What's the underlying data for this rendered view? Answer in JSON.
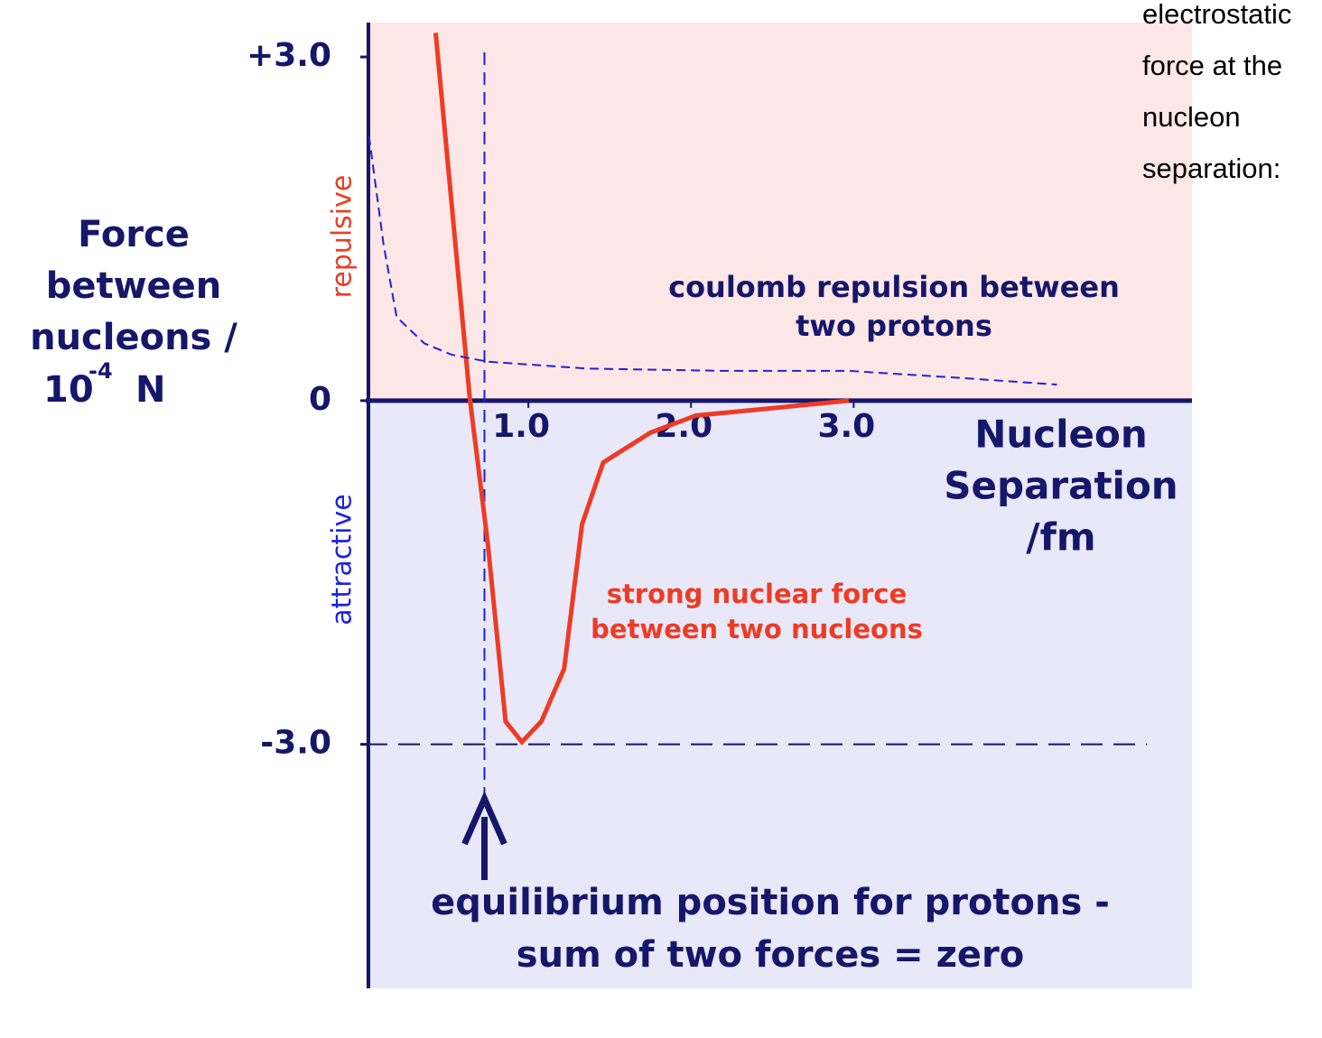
{
  "chart_data": {
    "type": "line",
    "ylabel": [
      "Force",
      "between",
      "nucleons /"
    ],
    "ylabel_unit": {
      "base": "10",
      "exp": "-4",
      "unit": "N"
    },
    "xlabel": [
      "Nucleon",
      "Separation",
      "/fm"
    ],
    "region_labels": {
      "top": "repulsive",
      "bottom": "attractive"
    },
    "region_colors": {
      "top": "#fde7e6",
      "bottom": "#e8e8f9"
    },
    "xlim": [
      0,
      5.08
    ],
    "ylim": [
      -5.13,
      3.3
    ],
    "xticks": [
      {
        "value": 1,
        "label": "1.0"
      },
      {
        "value": 2,
        "label": "2.0"
      },
      {
        "value": 3,
        "label": "3.0"
      }
    ],
    "yticks": [
      {
        "value": 3,
        "label": "+3.0"
      },
      0,
      {
        "value": -3,
        "label": "-3.0"
      }
    ],
    "series": [
      {
        "name": "strong nuclear force between two nucleons",
        "color": "#ee3b24",
        "style": "solid",
        "x": [
          0.43,
          0.64,
          0.75,
          0.86,
          0.96,
          1.08,
          1.22,
          1.33,
          1.46,
          1.75,
          2.03,
          2.47,
          2.97
        ],
        "values": [
          3.21,
          0.02,
          -1.24,
          -2.8,
          -2.98,
          -2.8,
          -2.34,
          -1.08,
          -0.54,
          -0.28,
          -0.13,
          -0.07,
          0
        ]
      },
      {
        "name": "coulomb repulsion between two protons",
        "color": "#2020e0",
        "style": "dashed",
        "x": [
          0.02,
          0.11,
          0.19,
          0.36,
          0.53,
          0.75,
          1.36,
          2.19,
          2.97,
          3.64,
          4.25
        ],
        "values": [
          2.31,
          1.36,
          0.73,
          0.5,
          0.4,
          0.34,
          0.28,
          0.26,
          0.26,
          0.2,
          0.14
        ]
      }
    ],
    "reference_lines": {
      "x": 0.73,
      "y": -3
    },
    "annotation": [
      "equilibrium position for protons -",
      "sum of two forces = zero"
    ]
  },
  "side_text": [
    "electrostatic",
    "force at the",
    "nucleon",
    "separation:"
  ]
}
